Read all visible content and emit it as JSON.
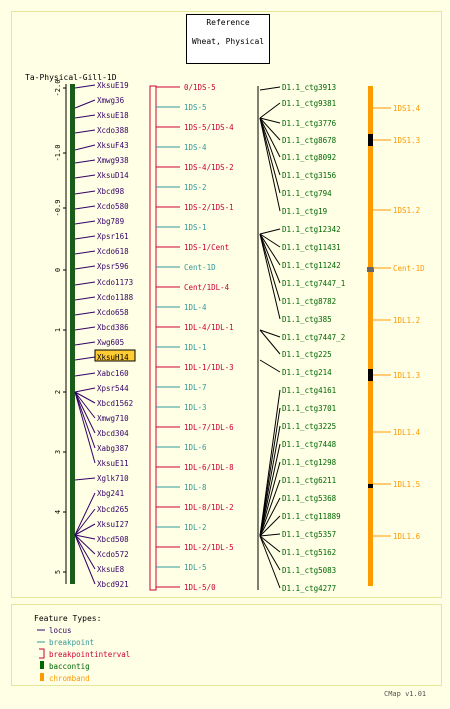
{
  "reference_box": {
    "title": "Reference",
    "subtitle": "Wheat, Physical"
  },
  "map_title": "Ta-Physical-Gill-1D",
  "version": "CMap v1.01",
  "scale_ticks": [
    "-2.0",
    "-1.0",
    "-0.9",
    "0",
    "1",
    "2",
    "3",
    "4",
    "5"
  ],
  "loci": [
    "XksuE19",
    "Xmwg36",
    "XksuE18",
    "Xcdo388",
    "XksuF43",
    "Xmwg938",
    "XksuD14",
    "Xbcd98",
    "Xcdo580",
    "Xbg789",
    "Xpsr161",
    "Xcdo618",
    "Xpsr596",
    "Xcdo1173",
    "Xcdo1188",
    "Xcdo658",
    "Xbcd386",
    "Xwg605",
    "XksuH14",
    "Xabc160",
    "Xpsr544",
    "Xbcd1562",
    "Xmwg710",
    "Xbcd304",
    "Xabg387",
    "XksuE11",
    "Xglk710",
    "Xbg241",
    "Xbcd265",
    "XksuI27",
    "Xbcd508",
    "Xcdo572",
    "XksuE8",
    "Xbcd921"
  ],
  "highlighted_locus": "XksuH14",
  "breakpoints": [
    {
      "label": "0/1DS-5",
      "color": "#cc0033"
    },
    {
      "label": "1DS-5",
      "color": "#339999"
    },
    {
      "label": "1DS-5/1DS-4",
      "color": "#cc0033"
    },
    {
      "label": "1DS-4",
      "color": "#339999"
    },
    {
      "label": "1DS-4/1DS-2",
      "color": "#cc0033"
    },
    {
      "label": "1DS-2",
      "color": "#339999"
    },
    {
      "label": "1DS-2/1DS-1",
      "color": "#cc0033"
    },
    {
      "label": "1DS-1",
      "color": "#339999"
    },
    {
      "label": "1DS-1/Cent",
      "color": "#cc0033"
    },
    {
      "label": "Cent-1D",
      "color": "#339999"
    },
    {
      "label": "Cent/1DL-4",
      "color": "#cc0033"
    },
    {
      "label": "1DL-4",
      "color": "#339999"
    },
    {
      "label": "1DL-4/1DL-1",
      "color": "#cc0033"
    },
    {
      "label": "1DL-1",
      "color": "#339999"
    },
    {
      "label": "1DL-1/1DL-3",
      "color": "#cc0033"
    },
    {
      "label": "1DL-7",
      "color": "#339999"
    },
    {
      "label": "1DL-3",
      "color": "#339999"
    },
    {
      "label": "1DL-7/1DL-6",
      "color": "#cc0033"
    },
    {
      "label": "1DL-6",
      "color": "#339999"
    },
    {
      "label": "1DL-6/1DL-8",
      "color": "#cc0033"
    },
    {
      "label": "1DL-8",
      "color": "#339999"
    },
    {
      "label": "1DL-8/1DL-2",
      "color": "#cc0033"
    },
    {
      "label": "1DL-2",
      "color": "#339999"
    },
    {
      "label": "1DL-2/1DL-5",
      "color": "#cc0033"
    },
    {
      "label": "1DL-5",
      "color": "#339999"
    },
    {
      "label": "1DL-5/0",
      "color": "#cc0033"
    }
  ],
  "contigs": [
    "D1.1_ctg3913",
    "D1.1_ctg9381",
    "D1.1_ctg3776",
    "D1.1_ctg8678",
    "D1.1_ctg8092",
    "D1.1_ctg3156",
    "D1.1_ctg794",
    "D1.1_ctg19",
    "D1.1_ctg12342",
    "D1.1_ctg11431",
    "D1.1_ctg11242",
    "D1.1_ctg7447_1",
    "D1.1_ctg8782",
    "D1.1_ctg385",
    "D1.1_ctg7447_2",
    "D1.1_ctg225",
    "D1.1_ctg214",
    "D1.1_ctg4161",
    "D1.1_ctg3701",
    "D1.1_ctg3225",
    "D1.1_ctg7448",
    "D1.1_ctg1298",
    "D1.1_ctg6211",
    "D1.1_ctg5368",
    "D1.1_ctg11889",
    "D1.1_ctg5357",
    "D1.1_ctg5162",
    "D1.1_ctg5083",
    "D1.1_ctg4277"
  ],
  "chrombands": [
    "1DS1.4",
    "1DS1.3",
    "1DS1.2",
    "Cent-1D",
    "1DL1.2",
    "1DL1.3",
    "1DL1.4",
    "1DL1.5",
    "1DL1.6"
  ],
  "legend": {
    "title": "Feature Types:",
    "items": [
      {
        "label": "locus",
        "color": "#330066"
      },
      {
        "label": "breakpoint",
        "color": "#339999"
      },
      {
        "label": "breakpointinterval",
        "color": "#cc0033"
      },
      {
        "label": "baccontig",
        "color": "#006600"
      },
      {
        "label": "chromband",
        "color": "#ff9900"
      }
    ]
  },
  "colors": {
    "locus": "#330066",
    "breakpoint": "#339999",
    "breakpointinterval": "#cc0033",
    "baccontig": "#006600",
    "chromband": "#ff9900",
    "backbone": "#1a5c1a",
    "highlight": "#ffcc33"
  }
}
